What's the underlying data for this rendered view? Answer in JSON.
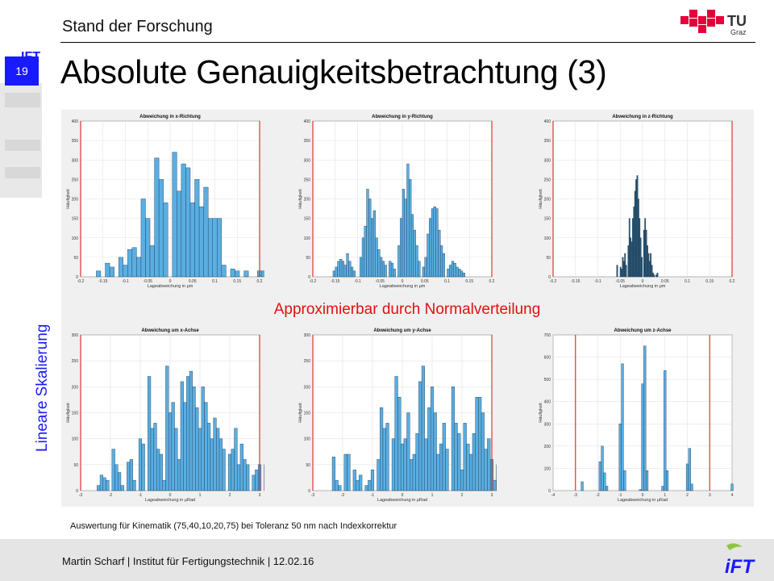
{
  "header": {
    "section": "Stand der Forschung",
    "title": "Absolute Genauigkeitsbetrachtung (3)",
    "page_number": "19",
    "side_label": "Lineare Skalierung",
    "logo": {
      "mark": "TU",
      "sub": "Graz"
    }
  },
  "note": "Approximierbar  durch Normalverteilung",
  "caption": "Auswertung für Kinematik (75,40,10,20,75) bei Toleranz 50 nm nach Indexkorrektur",
  "footer": {
    "text": "Martin Scharf | Institut für Fertigungstechnik | 12.02.16",
    "logo": "iFT"
  },
  "colors": {
    "accent_blue": "#1a1aff",
    "note_red": "#e01010",
    "bar_fill": "#5aaee2",
    "bar_fill_dark": "#2a5877",
    "limit_line": "#e02020"
  },
  "chart_data": [
    {
      "type": "bar",
      "title": "Abweichung in x-Richtung",
      "xlabel": "Lageabweichung in μm",
      "ylabel": "Häufigkeit",
      "xlim": [
        -0.2,
        0.2
      ],
      "ylim": [
        0,
        400
      ],
      "xticks": [
        -0.2,
        -0.15,
        -0.1,
        -0.05,
        0,
        0.05,
        0.1,
        0.15,
        0.2
      ],
      "yticks": [
        0,
        50,
        100,
        150,
        200,
        250,
        300,
        350,
        400
      ],
      "xtick_labels": [
        "-0.2",
        "-0.15",
        "-0.1",
        "-0.05",
        "0",
        "0.05",
        "0.1",
        "0.15",
        "0.2"
      ],
      "ytick_labels": [
        "0",
        "50",
        "100",
        "150",
        "200",
        "250",
        "300",
        "350",
        "400"
      ],
      "grid": true,
      "limits": [
        -0.2,
        0.2
      ],
      "bins": {
        "start": -0.165,
        "width": 0.01
      },
      "values": [
        15,
        0,
        35,
        25,
        0,
        50,
        30,
        70,
        75,
        50,
        200,
        150,
        80,
        305,
        250,
        190,
        0,
        320,
        220,
        290,
        280,
        190,
        250,
        180,
        230,
        150,
        150,
        150,
        30,
        0,
        20,
        15,
        0,
        15,
        0,
        0,
        15,
        15,
        15,
        15,
        15,
        15
      ]
    },
    {
      "type": "bar",
      "title": "Abweichung in y-Richtung",
      "xlabel": "Lageabweichung in μm",
      "ylabel": "Häufigkeit",
      "xlim": [
        -0.2,
        0.2
      ],
      "ylim": [
        0,
        400
      ],
      "xticks": [
        -0.2,
        -0.15,
        -0.1,
        -0.05,
        0,
        0.05,
        0.1,
        0.15,
        0.2
      ],
      "yticks": [
        0,
        50,
        100,
        150,
        200,
        250,
        300,
        350,
        400
      ],
      "xtick_labels": [
        "-0.2",
        "-0.15",
        "-0.1",
        "-0.05",
        "0",
        "0.05",
        "0.1",
        "0.15",
        "0.2"
      ],
      "ytick_labels": [
        "0",
        "50",
        "100",
        "150",
        "200",
        "250",
        "300",
        "350",
        "400"
      ],
      "grid": true,
      "limits": [
        -0.2,
        0.2
      ],
      "bins": {
        "start": -0.155,
        "width": 0.005
      },
      "values": [
        15,
        25,
        40,
        45,
        40,
        30,
        60,
        40,
        25,
        15,
        0,
        0,
        50,
        100,
        130,
        225,
        200,
        150,
        170,
        100,
        70,
        50,
        40,
        30,
        0,
        40,
        35,
        20,
        0,
        80,
        150,
        225,
        200,
        290,
        250,
        160,
        120,
        80,
        40,
        0,
        25,
        50,
        110,
        150,
        175,
        180,
        175,
        120,
        80,
        60,
        0,
        20,
        30,
        40,
        35,
        25,
        20,
        15,
        10,
        0
      ]
    },
    {
      "type": "bar",
      "title": "Abweichung in z-Richtung",
      "xlabel": "Lageabweichung in μm",
      "ylabel": "Häufigkeit",
      "xlim": [
        -0.2,
        0.2
      ],
      "ylim": [
        0,
        400
      ],
      "xticks": [
        -0.2,
        -0.15,
        -0.1,
        -0.05,
        0,
        0.05,
        0.1,
        0.15,
        0.2
      ],
      "yticks": [
        0,
        50,
        100,
        150,
        200,
        250,
        300,
        350,
        400
      ],
      "xtick_labels": [
        "-0.2",
        "-0.15",
        "-0.1",
        "-0.05",
        "0",
        "0.05",
        "0.1",
        "0.15",
        "0.2"
      ],
      "ytick_labels": [
        "0",
        "50",
        "100",
        "150",
        "200",
        "250",
        "300",
        "350",
        "400"
      ],
      "grid": true,
      "limits": [
        -0.2,
        0.2
      ],
      "bins": {
        "start": -0.058,
        "width": 0.0025
      },
      "values": [
        30,
        0,
        0,
        25,
        20,
        50,
        40,
        60,
        30,
        0,
        80,
        150,
        100,
        90,
        150,
        180,
        220,
        250,
        260,
        200,
        150,
        100,
        50,
        0,
        120,
        150,
        120,
        80,
        60,
        40,
        60,
        30,
        10,
        5,
        0,
        5,
        10
      ]
    },
    {
      "type": "bar",
      "title": "Abweichung um x-Achse",
      "xlabel": "Lageabweichung in μRad",
      "ylabel": "Häufigkeit",
      "xlim": [
        -3,
        3
      ],
      "ylim": [
        0,
        300
      ],
      "xticks": [
        -3,
        -2,
        -1,
        0,
        1,
        2,
        3
      ],
      "yticks": [
        0,
        50,
        100,
        150,
        200,
        250,
        300
      ],
      "xtick_labels": [
        "-3",
        "-2",
        "-1",
        "0",
        "1",
        "2",
        "3"
      ],
      "ytick_labels": [
        "0",
        "50",
        "100",
        "150",
        "200",
        "250",
        "300"
      ],
      "grid": true,
      "limits": [
        -3,
        3
      ],
      "bins": {
        "start": -2.45,
        "width": 0.1
      },
      "values": [
        10,
        30,
        25,
        20,
        0,
        80,
        50,
        35,
        10,
        0,
        55,
        60,
        20,
        0,
        100,
        90,
        0,
        220,
        120,
        130,
        80,
        70,
        20,
        240,
        150,
        170,
        120,
        60,
        210,
        170,
        220,
        230,
        200,
        160,
        120,
        200,
        170,
        130,
        100,
        140,
        120,
        100,
        80,
        0,
        70,
        80,
        120,
        50,
        90,
        60,
        50,
        0,
        30,
        40,
        50,
        0,
        50,
        60,
        30,
        40,
        60,
        60,
        50,
        40,
        30,
        0,
        70,
        50,
        0,
        40,
        20,
        0,
        0,
        0,
        0,
        0,
        0,
        0,
        0,
        0
      ]
    },
    {
      "type": "bar",
      "title": "Abweichung um y-Achse",
      "xlabel": "Lageabweichung in μRad",
      "ylabel": "Häufigkeit",
      "xlim": [
        -3,
        3
      ],
      "ylim": [
        0,
        300
      ],
      "xticks": [
        -3,
        -2,
        -1,
        0,
        1,
        2,
        3
      ],
      "yticks": [
        0,
        50,
        100,
        150,
        200,
        250,
        300
      ],
      "xtick_labels": [
        "-3",
        "-2",
        "-1",
        "0",
        "1",
        "2",
        "3"
      ],
      "ytick_labels": [
        "0",
        "50",
        "100",
        "150",
        "200",
        "250",
        "300"
      ],
      "grid": true,
      "limits": [
        -3,
        3
      ],
      "bins": {
        "start": -2.35,
        "width": 0.1
      },
      "values": [
        65,
        20,
        10,
        0,
        70,
        70,
        0,
        40,
        20,
        30,
        0,
        10,
        20,
        40,
        0,
        60,
        160,
        120,
        130,
        0,
        100,
        220,
        180,
        90,
        100,
        150,
        60,
        70,
        110,
        210,
        240,
        100,
        160,
        200,
        150,
        70,
        90,
        130,
        80,
        0,
        200,
        130,
        110,
        40,
        130,
        90,
        70,
        110,
        180,
        180,
        150,
        80,
        100,
        60,
        20,
        50,
        40,
        40,
        20,
        0,
        40,
        0,
        20,
        0,
        30,
        20,
        0,
        0,
        0,
        0
      ]
    },
    {
      "type": "bar",
      "title": "Abweichung um z-Achse",
      "xlabel": "Lageabweichung in μRad",
      "ylabel": "Häufigkeit",
      "xlim": [
        -4,
        4
      ],
      "ylim": [
        0,
        700
      ],
      "xticks": [
        -4,
        -3,
        -2,
        -1,
        0,
        1,
        2,
        3,
        4
      ],
      "yticks": [
        0,
        100,
        200,
        300,
        400,
        500,
        600,
        700
      ],
      "xtick_labels": [
        "-4",
        "-3",
        "-2",
        "-1",
        "0",
        "1",
        "2",
        "3",
        "4"
      ],
      "ytick_labels": [
        "0",
        "100",
        "200",
        "300",
        "400",
        "500",
        "600",
        "700"
      ],
      "grid": true,
      "limits": [
        -3,
        3
      ],
      "bins": {
        "start": -3.05,
        "width": 0.1
      },
      "values": [
        0,
        0,
        0,
        40,
        0,
        0,
        0,
        0,
        0,
        0,
        0,
        130,
        200,
        80,
        20,
        0,
        0,
        0,
        0,
        0,
        300,
        570,
        90,
        0,
        0,
        0,
        0,
        0,
        0,
        5,
        480,
        650,
        90,
        0,
        0,
        0,
        0,
        0,
        0,
        20,
        540,
        90,
        0,
        0,
        0,
        0,
        0,
        0,
        0,
        0,
        120,
        190,
        30,
        0,
        0,
        0,
        0,
        0,
        0,
        0,
        0,
        0,
        0,
        0,
        0,
        0,
        0,
        0,
        0,
        0,
        30,
        0,
        0,
        0
      ]
    }
  ]
}
